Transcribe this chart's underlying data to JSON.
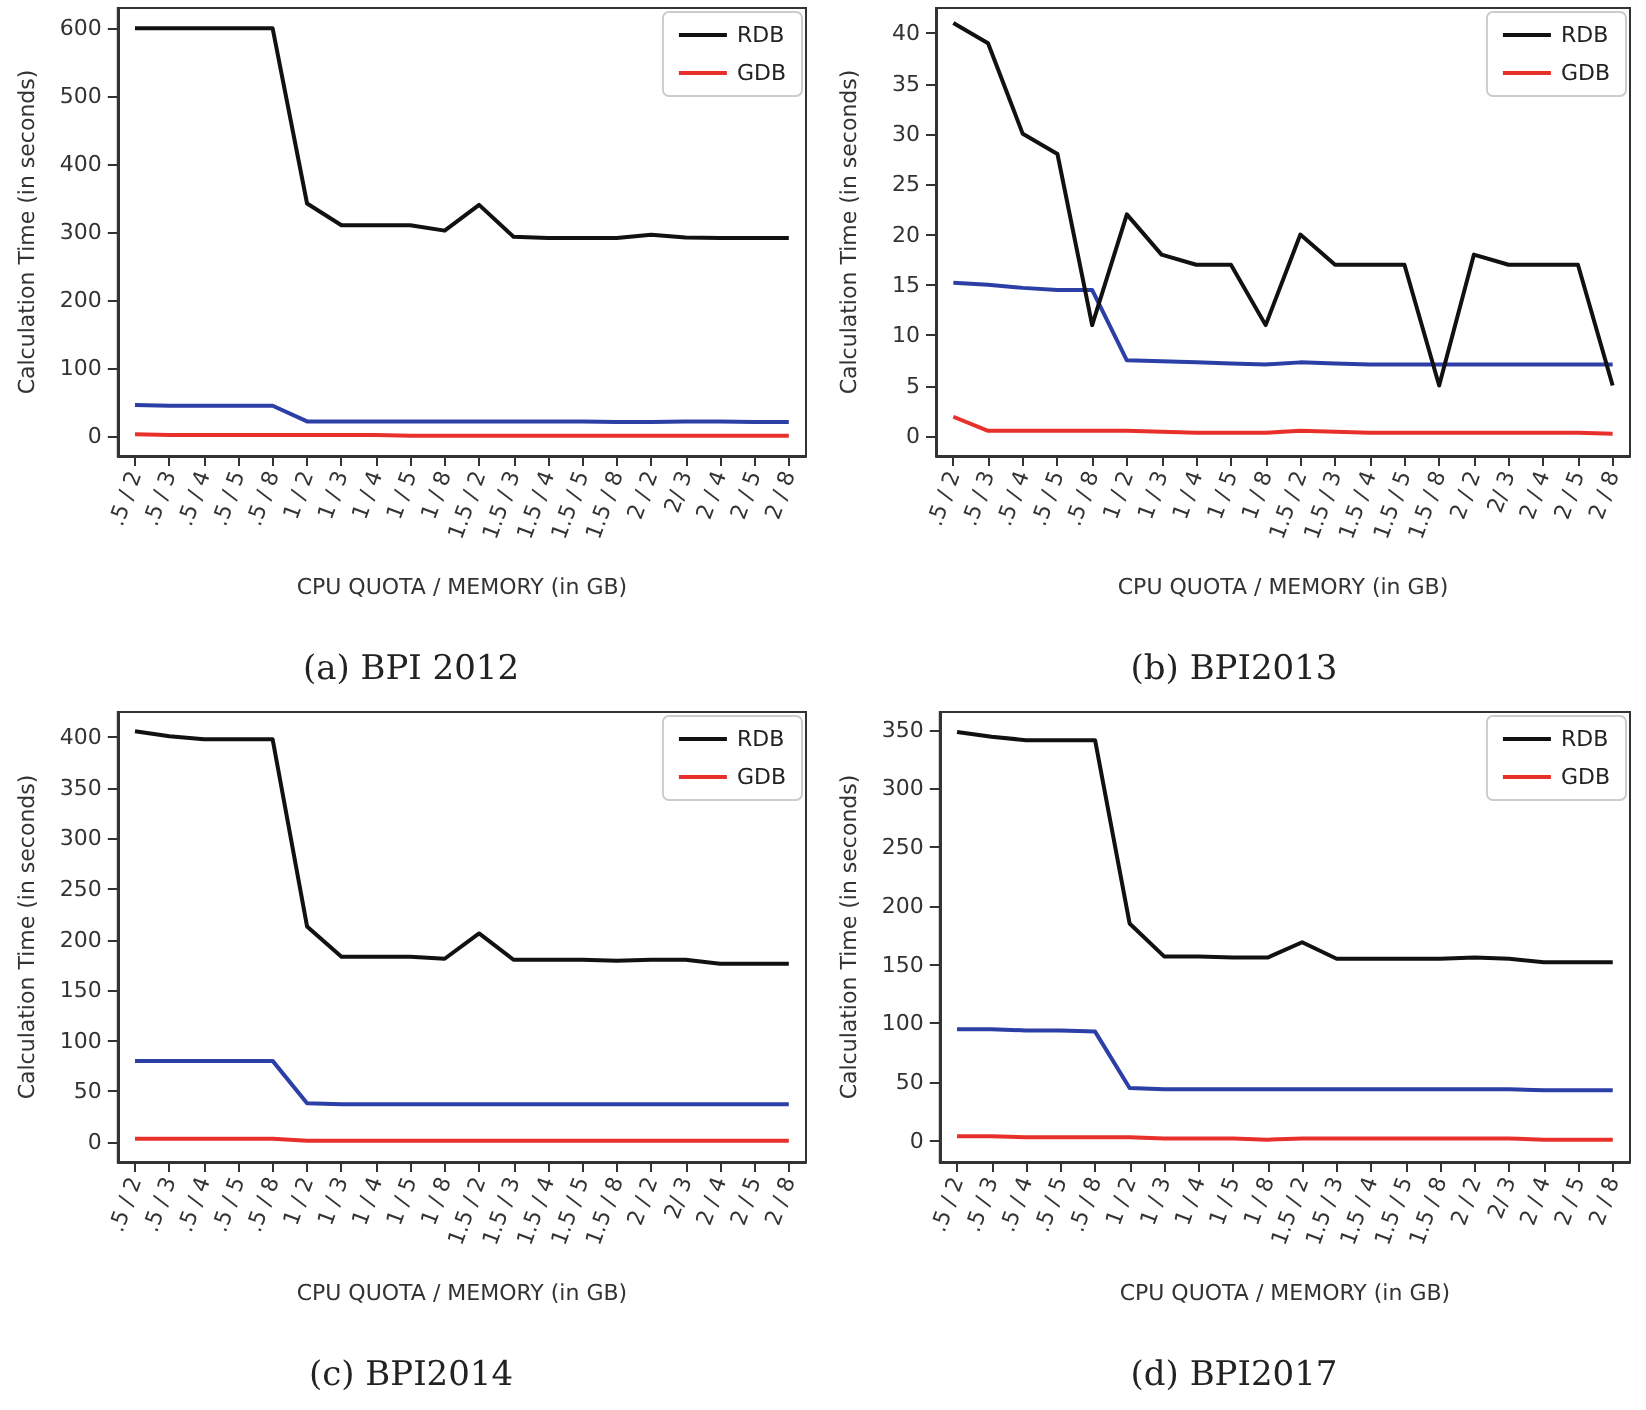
{
  "chart_data": [
    {
      "type": "line",
      "title": "(a) BPI 2012",
      "xlabel": "CPU QUOTA / MEMORY (in GB)",
      "ylabel": "Calculation Time (in seconds)",
      "categories": [
        ".5 / 2",
        ".5 / 3",
        ".5 / 4",
        ".5 / 5",
        ".5 / 8",
        "1 / 2",
        "1 / 3",
        "1 / 4",
        "1 / 5",
        "1 / 8",
        "1.5 / 2",
        "1.5 / 3",
        "1.5 / 4",
        "1.5 / 5",
        "1.5 / 8",
        "2 / 2",
        "2/ 3",
        "2 / 4",
        "2 / 5",
        "2 / 8"
      ],
      "ylim": [
        -30,
        630
      ],
      "yticks": [
        0,
        100,
        200,
        300,
        400,
        500,
        600
      ],
      "grid": false,
      "legend": "top right",
      "series": [
        {
          "color": "#2b3fa6",
          "values": [
            45,
            44,
            44,
            44,
            44,
            21,
            21,
            21,
            21,
            21,
            21,
            21,
            21,
            21,
            20,
            20,
            21,
            21,
            20,
            20
          ]
        },
        {
          "name": "RDB",
          "color": "#111111",
          "values": [
            600,
            600,
            600,
            600,
            600,
            342,
            310,
            310,
            310,
            302,
            340,
            293,
            291,
            291,
            291,
            296,
            292,
            291,
            291,
            291
          ]
        },
        {
          "name": "GDB",
          "color": "#e8302a",
          "values": [
            2,
            1,
            1,
            1,
            1,
            1,
            1,
            1,
            0,
            0,
            0,
            0,
            0,
            0,
            0,
            0,
            0,
            0,
            0,
            0
          ]
        }
      ]
    },
    {
      "type": "line",
      "title": "(b) BPI2013",
      "xlabel": "CPU QUOTA / MEMORY (in GB)",
      "ylabel": "Calculation Time (in seconds)",
      "categories": [
        ".5 / 2",
        ".5 / 3",
        ".5 / 4",
        ".5 / 5",
        ".5 / 8",
        "1 / 2",
        "1 / 3",
        "1 / 4",
        "1 / 5",
        "1 / 8",
        "1.5 / 2",
        "1.5 / 3",
        "1.5 / 4",
        "1.5 / 5",
        "1.5 / 8",
        "2 / 2",
        "2/ 3",
        "2 / 4",
        "2 / 5",
        "2 / 8"
      ],
      "ylim": [
        -2,
        42.5
      ],
      "yticks": [
        0,
        5,
        10,
        15,
        20,
        25,
        30,
        35,
        40
      ],
      "grid": false,
      "legend": "top right",
      "series": [
        {
          "color": "#2b3fa6",
          "values": [
            15.2,
            15,
            14.7,
            14.5,
            14.5,
            7.5,
            7.4,
            7.3,
            7.2,
            7.1,
            7.3,
            7.2,
            7.1,
            7.1,
            7.1,
            7.1,
            7.1,
            7.1,
            7.1,
            7.1
          ]
        },
        {
          "name": "RDB",
          "color": "#111111",
          "values": [
            41,
            39,
            30,
            28,
            11,
            22,
            18,
            17,
            17,
            11,
            20,
            17,
            17,
            17,
            5,
            18,
            17,
            17,
            17,
            5
          ]
        },
        {
          "name": "GDB",
          "color": "#e8302a",
          "values": [
            1.9,
            0.5,
            0.5,
            0.5,
            0.5,
            0.5,
            0.4,
            0.3,
            0.3,
            0.3,
            0.5,
            0.4,
            0.3,
            0.3,
            0.3,
            0.3,
            0.3,
            0.3,
            0.3,
            0.2
          ]
        }
      ]
    },
    {
      "type": "line",
      "title": "(c) BPI2014",
      "xlabel": "CPU QUOTA / MEMORY (in GB)",
      "ylabel": "Calculation Time (in seconds)",
      "categories": [
        ".5 / 2",
        ".5 / 3",
        ".5 / 4",
        ".5 / 5",
        ".5 / 8",
        "1 / 2",
        "1 / 3",
        "1 / 4",
        "1 / 5",
        "1 / 8",
        "1.5 / 2",
        "1.5 / 3",
        "1.5 / 4",
        "1.5 / 5",
        "1.5 / 8",
        "2 / 2",
        "2/ 3",
        "2 / 4",
        "2 / 5",
        "2 / 8"
      ],
      "ylim": [
        -20,
        425
      ],
      "yticks": [
        0,
        50,
        100,
        150,
        200,
        250,
        300,
        350,
        400
      ],
      "grid": false,
      "legend": "top right",
      "series": [
        {
          "color": "#2b3fa6",
          "values": [
            80,
            80,
            80,
            80,
            80,
            38,
            37,
            37,
            37,
            37,
            37,
            37,
            37,
            37,
            37,
            37,
            37,
            37,
            37,
            37
          ]
        },
        {
          "name": "RDB",
          "color": "#111111",
          "values": [
            406,
            401,
            398,
            398,
            398,
            213,
            183,
            183,
            183,
            181,
            206,
            180,
            180,
            180,
            179,
            180,
            180,
            176,
            176,
            176
          ]
        },
        {
          "name": "GDB",
          "color": "#e8302a",
          "values": [
            3,
            3,
            3,
            3,
            3,
            1,
            1,
            1,
            1,
            1,
            1,
            1,
            1,
            1,
            1,
            1,
            1,
            1,
            1,
            1
          ]
        }
      ]
    },
    {
      "type": "line",
      "title": "(d) BPI2017",
      "xlabel": "CPU QUOTA / MEMORY (in GB)",
      "ylabel": "Calculation Time (in seconds)",
      "categories": [
        ".5 / 2",
        ".5 / 3",
        ".5 / 4",
        ".5 / 5",
        ".5 / 8",
        "1 / 2",
        "1 / 3",
        "1 / 4",
        "1 / 5",
        "1 / 8",
        "1.5 / 2",
        "1.5 / 3",
        "1.5 / 4",
        "1.5 / 5",
        "1.5 / 8",
        "2 / 2",
        "2/ 3",
        "2 / 4",
        "2 / 5",
        "2 / 8"
      ],
      "ylim": [
        -18,
        365
      ],
      "yticks": [
        0,
        50,
        100,
        150,
        200,
        250,
        300,
        350
      ],
      "grid": false,
      "legend": "top right",
      "series": [
        {
          "color": "#2b3fa6",
          "values": [
            95,
            95,
            94,
            94,
            93,
            45,
            44,
            44,
            44,
            44,
            44,
            44,
            44,
            44,
            44,
            44,
            44,
            43,
            43,
            43
          ]
        },
        {
          "name": "RDB",
          "color": "#111111",
          "values": [
            348,
            344,
            341,
            341,
            341,
            185,
            157,
            157,
            156,
            156,
            169,
            155,
            155,
            155,
            155,
            156,
            155,
            152,
            152,
            152
          ]
        },
        {
          "name": "GDB",
          "color": "#e8302a",
          "values": [
            4,
            4,
            3,
            3,
            3,
            3,
            2,
            2,
            2,
            1,
            2,
            2,
            2,
            2,
            2,
            2,
            2,
            1,
            1,
            1
          ]
        }
      ]
    }
  ]
}
